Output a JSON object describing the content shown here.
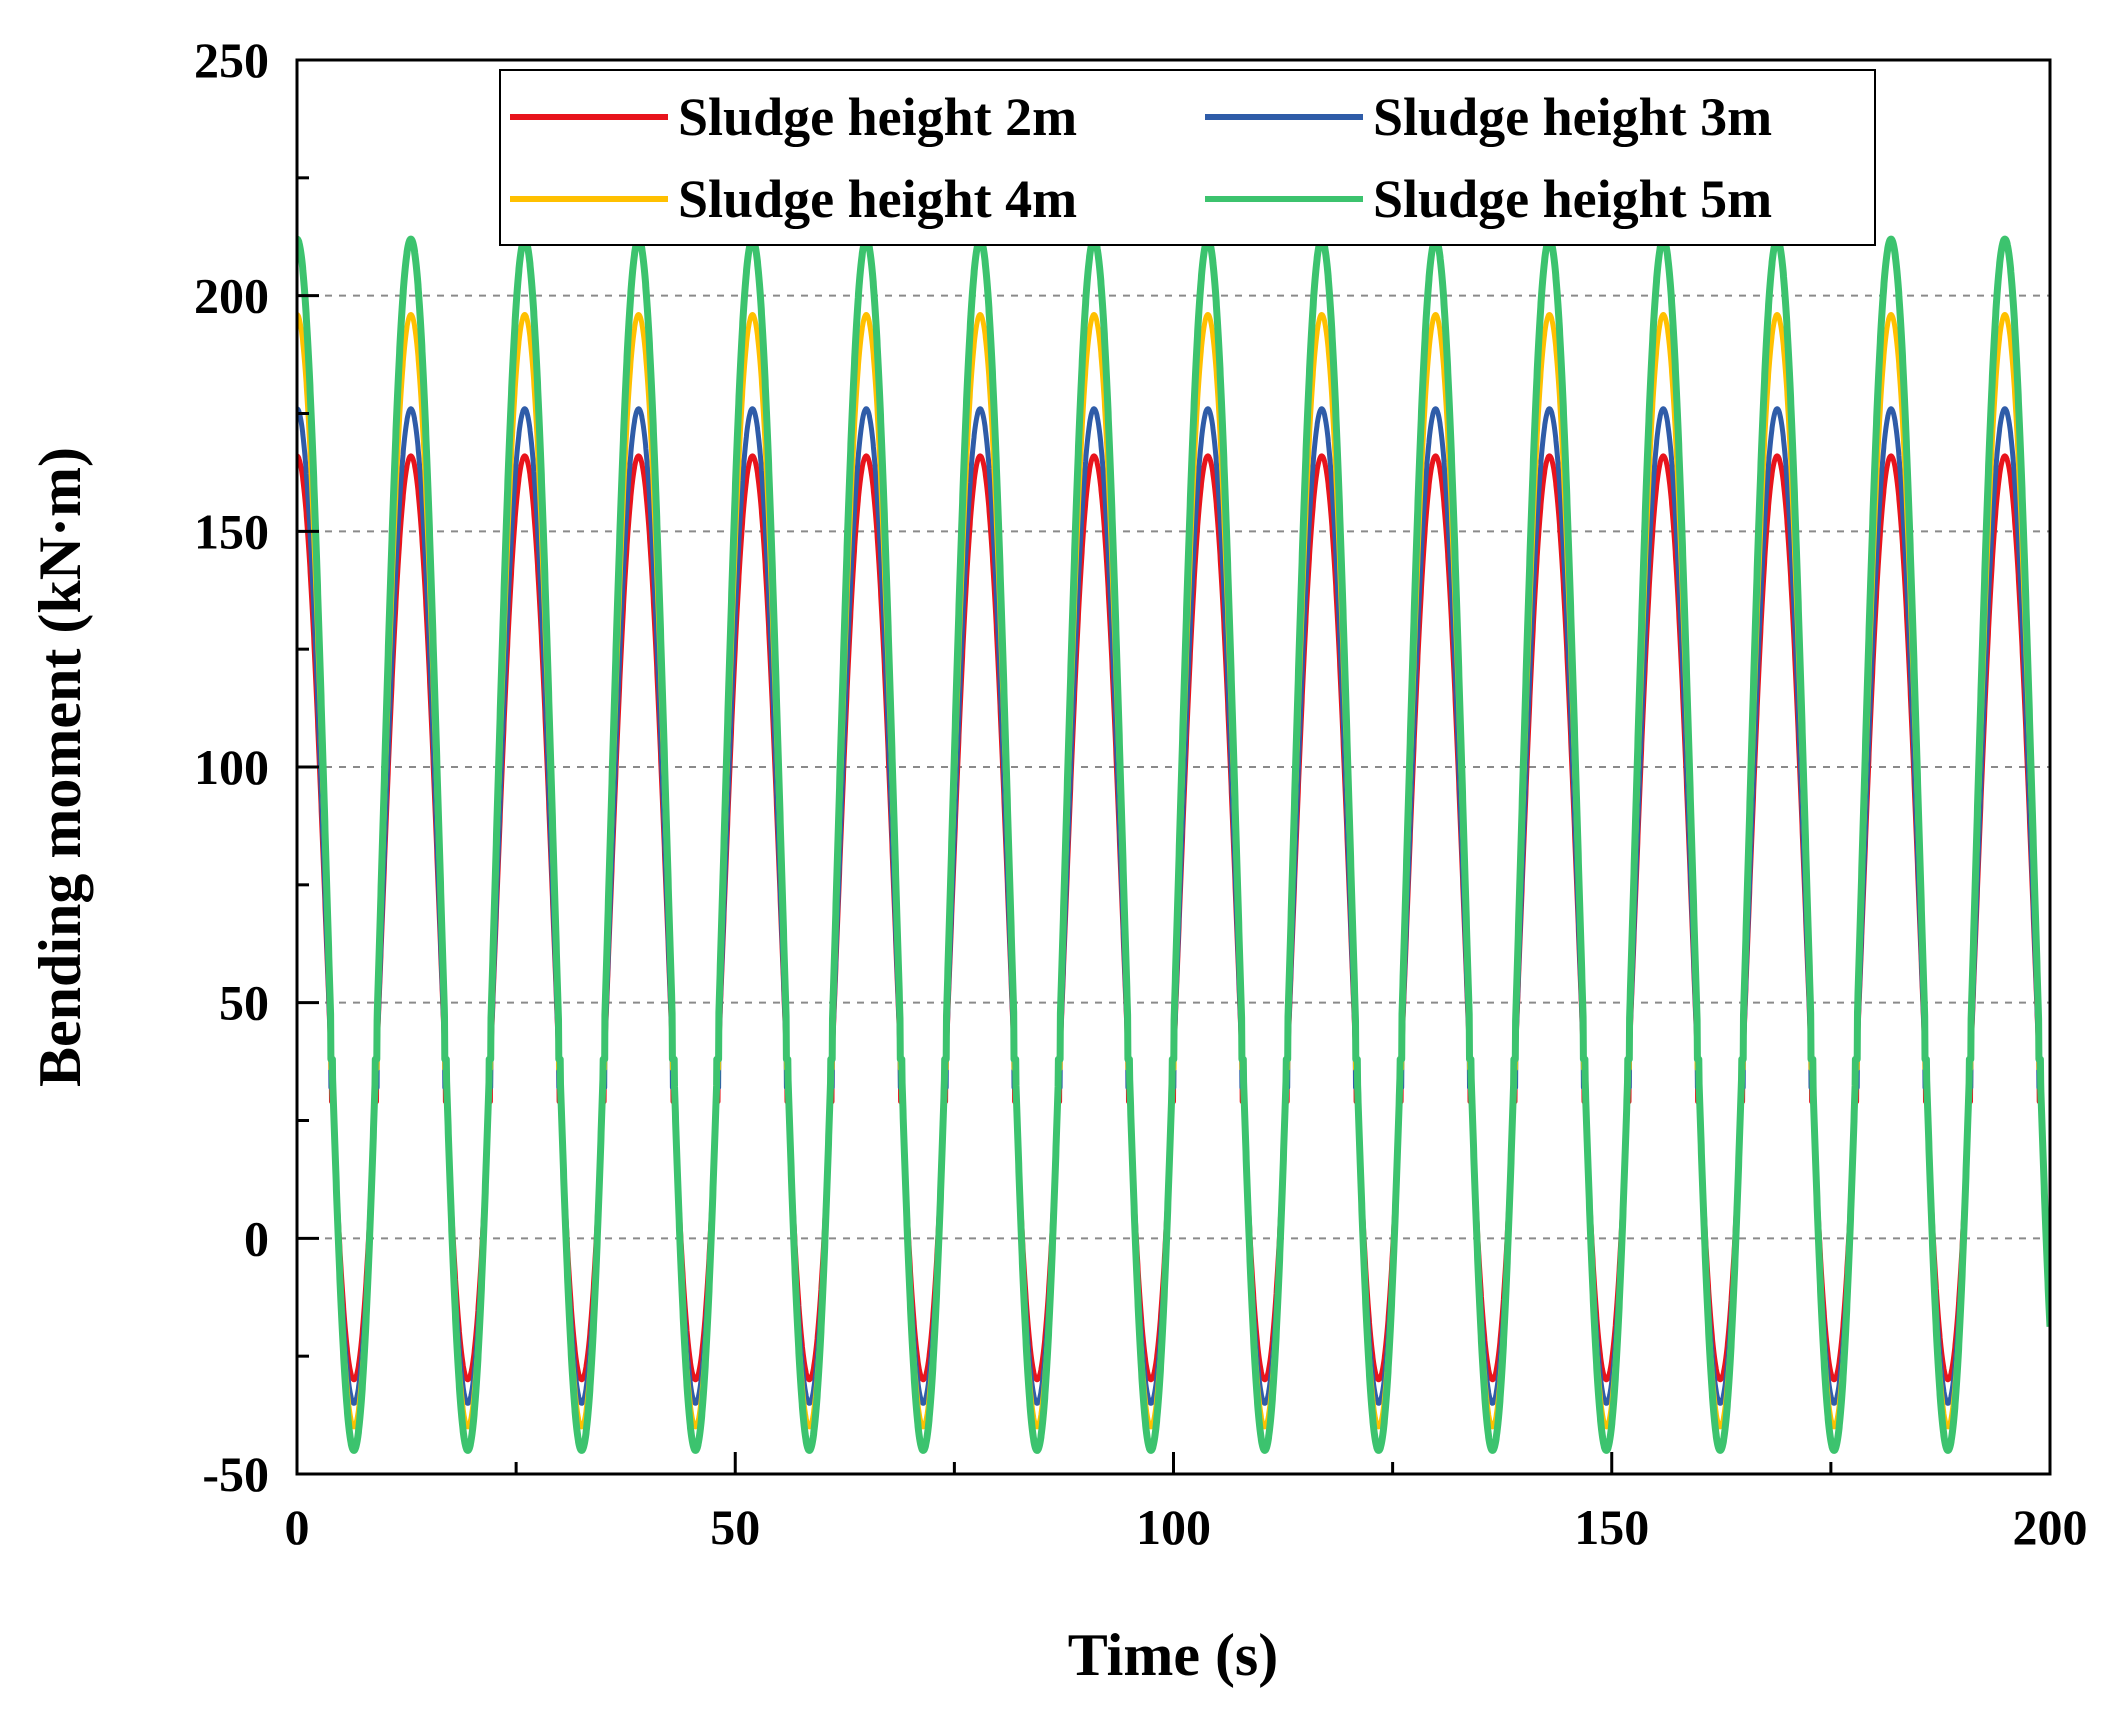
{
  "chart_data": {
    "type": "line",
    "title": "",
    "xlabel": "Time (s)",
    "ylabel": "Bending moment (kN·m)",
    "xlim": [
      0,
      200
    ],
    "ylim": [
      -50,
      250
    ],
    "xticks": [
      "0",
      "50",
      "100",
      "150",
      "200"
    ],
    "yticks": [
      "-50",
      "0",
      "50",
      "100",
      "150",
      "200",
      "250"
    ],
    "xtick_values": [
      0,
      50,
      100,
      150,
      200
    ],
    "ytick_values": [
      -50,
      0,
      50,
      100,
      150,
      200,
      250
    ],
    "xminor_step": 25,
    "yminor_step": 25,
    "grid": "dashed horizontal at major y ticks",
    "legend_position": "top-center",
    "period_s": 12.99,
    "series": [
      {
        "name": "Sludge height 2m",
        "color": "#e8141c",
        "max": 166,
        "min": -30,
        "trough_plateau": 29
      },
      {
        "name": "Sludge height 3m",
        "color": "#2f5ca8",
        "max": 176,
        "min": -35,
        "trough_plateau": 32
      },
      {
        "name": "Sludge height 4m",
        "color": "#ffc000",
        "max": 196,
        "min": -40,
        "trough_plateau": 36
      },
      {
        "name": "Sludge height 5m",
        "color": "#3cc36e",
        "max": 212,
        "min": -45,
        "trough_plateau": 38
      }
    ]
  }
}
